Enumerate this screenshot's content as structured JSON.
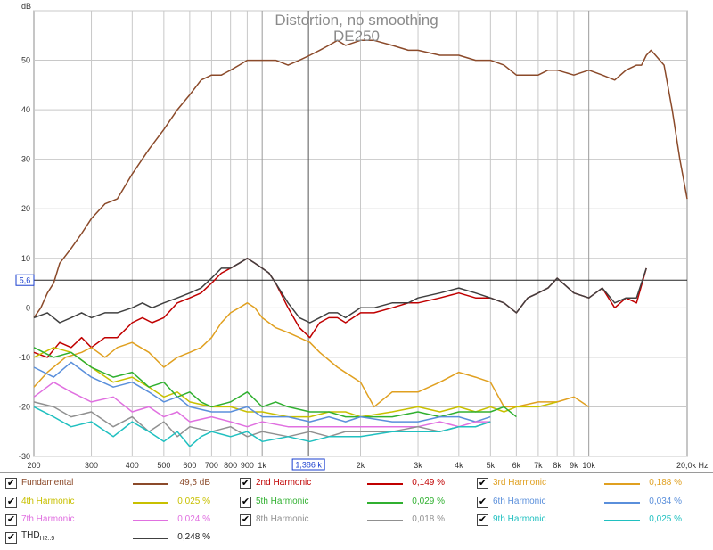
{
  "chart_data": {
    "type": "line",
    "title": "Distortion, no smoothing",
    "subtitle": "DE250",
    "ylabel": "dB",
    "xlabel": "Hz",
    "x_scale": "log",
    "xlim": [
      200,
      20000
    ],
    "ylim": [
      -30,
      60
    ],
    "grid": true,
    "y_ticks": [
      "50",
      "40",
      "30",
      "20",
      "10",
      "0",
      "-10",
      "-20",
      "-30"
    ],
    "x_ticks": [
      "200",
      "300",
      "400",
      "500",
      "600",
      "700",
      "800",
      "900",
      "1k",
      "2k",
      "3k",
      "4k",
      "5k",
      "6k",
      "7k",
      "8k",
      "9k",
      "10k",
      "20,0k Hz"
    ],
    "cursor": {
      "x_label": "1,386 k",
      "y_label": "5,6",
      "x_value": 1386,
      "y_value": 5.6
    },
    "series": [
      {
        "name": "Fundamental",
        "color": "#8b4a2a",
        "x": [
          200,
          210,
          220,
          230,
          240,
          260,
          280,
          300,
          330,
          360,
          400,
          450,
          500,
          550,
          600,
          650,
          700,
          750,
          800,
          850,
          900,
          950,
          1000,
          1100,
          1200,
          1300,
          1400,
          1500,
          1600,
          1700,
          1800,
          2000,
          2200,
          2500,
          2800,
          3000,
          3500,
          4000,
          4500,
          5000,
          5500,
          6000,
          6500,
          7000,
          7500,
          8000,
          9000,
          10000,
          11000,
          12000,
          13000,
          14000,
          14500,
          15000,
          15500,
          16000,
          17000,
          18000,
          19000,
          20000
        ],
        "y": [
          -2,
          0,
          3,
          5,
          9,
          12,
          15,
          18,
          21,
          22,
          27,
          32,
          36,
          40,
          43,
          46,
          47,
          47,
          48,
          49,
          50,
          50,
          50,
          50,
          49,
          50,
          51,
          52,
          53,
          54,
          53,
          54,
          54,
          53,
          52,
          52,
          51,
          51,
          50,
          50,
          49,
          47,
          47,
          47,
          48,
          48,
          47,
          48,
          47,
          46,
          48,
          49,
          49,
          51,
          52,
          51,
          49,
          40,
          30,
          22
        ]
      },
      {
        "name": "2nd Harmonic",
        "color": "#c00000",
        "x": [
          200,
          220,
          240,
          260,
          280,
          300,
          330,
          360,
          400,
          430,
          460,
          500,
          550,
          600,
          650,
          700,
          750,
          800,
          850,
          900,
          950,
          1000,
          1050,
          1100,
          1200,
          1300,
          1400,
          1500,
          1600,
          1700,
          1800,
          2000,
          2200,
          2500,
          2800,
          3000,
          3500,
          4000,
          4500,
          5000,
          5500,
          6000,
          6500,
          7000,
          7500,
          8000,
          9000,
          10000,
          11000,
          12000,
          13000,
          14000,
          15000
        ],
        "y": [
          -9,
          -10,
          -7,
          -8,
          -6,
          -8,
          -6,
          -6,
          -3,
          -2,
          -3,
          -2,
          1,
          2,
          3,
          5,
          7,
          8,
          9,
          10,
          9,
          8,
          7,
          5,
          0,
          -4,
          -6,
          -3,
          -2,
          -2,
          -3,
          -1,
          -1,
          0,
          1,
          1,
          2,
          3,
          2,
          2,
          1,
          -1,
          2,
          3,
          4,
          6,
          3,
          2,
          4,
          0,
          2,
          1,
          8
        ]
      },
      {
        "name": "3rd Harmonic",
        "color": "#e0a020",
        "x": [
          200,
          220,
          250,
          280,
          300,
          330,
          360,
          400,
          450,
          500,
          550,
          600,
          650,
          700,
          750,
          800,
          850,
          900,
          950,
          1000,
          1100,
          1200,
          1300,
          1400,
          1500,
          1700,
          2000,
          2200,
          2500,
          3000,
          3500,
          4000,
          4500,
          5000,
          5500,
          6000,
          7000,
          8000,
          9000,
          10000
        ],
        "y": [
          -16,
          -13,
          -10,
          -9,
          -8,
          -10,
          -8,
          -7,
          -9,
          -12,
          -10,
          -9,
          -8,
          -6,
          -3,
          -1,
          0,
          1,
          0,
          -2,
          -4,
          -5,
          -6,
          -7,
          -9,
          -12,
          -15,
          -20,
          -17,
          -17,
          -15,
          -13,
          -14,
          -15,
          -20,
          -20,
          -19,
          -19,
          -18,
          -20
        ]
      },
      {
        "name": "4th Harmonic",
        "color": "#c8c000",
        "x": [
          200,
          230,
          260,
          300,
          350,
          400,
          450,
          500,
          550,
          600,
          700,
          800,
          900,
          1000,
          1200,
          1400,
          1600,
          1800,
          2000,
          2500,
          3000,
          3500,
          4000,
          4500,
          5000,
          5500,
          6000,
          7000,
          8000
        ],
        "y": [
          -10,
          -8,
          -9,
          -12,
          -15,
          -14,
          -16,
          -18,
          -17,
          -19,
          -20,
          -20,
          -21,
          -21,
          -22,
          -22,
          -21,
          -21,
          -22,
          -21,
          -20,
          -21,
          -20,
          -21,
          -20,
          -21,
          -20,
          -20,
          -19
        ]
      },
      {
        "name": "5th Harmonic",
        "color": "#30b030",
        "x": [
          200,
          230,
          260,
          300,
          350,
          400,
          450,
          500,
          550,
          600,
          650,
          700,
          800,
          900,
          1000,
          1100,
          1200,
          1400,
          1600,
          1800,
          2000,
          2500,
          3000,
          3500,
          4000,
          4500,
          5000,
          5500,
          6000
        ],
        "y": [
          -8,
          -10,
          -9,
          -12,
          -14,
          -13,
          -16,
          -15,
          -18,
          -17,
          -19,
          -20,
          -19,
          -17,
          -20,
          -19,
          -20,
          -21,
          -21,
          -22,
          -22,
          -22,
          -21,
          -22,
          -21,
          -21,
          -21,
          -20,
          -22
        ]
      },
      {
        "name": "6th Harmonic",
        "color": "#5a8fdb",
        "x": [
          200,
          230,
          260,
          300,
          350,
          400,
          450,
          500,
          550,
          600,
          700,
          800,
          900,
          1000,
          1200,
          1400,
          1600,
          1800,
          2000,
          2500,
          3000,
          3500,
          4000,
          4500,
          5000
        ],
        "y": [
          -12,
          -14,
          -11,
          -14,
          -16,
          -15,
          -17,
          -19,
          -18,
          -20,
          -21,
          -21,
          -20,
          -22,
          -22,
          -23,
          -22,
          -23,
          -22,
          -23,
          -23,
          -22,
          -22,
          -23,
          -22
        ]
      },
      {
        "name": "7th Harmonic",
        "color": "#e070e0",
        "x": [
          200,
          230,
          260,
          300,
          350,
          400,
          450,
          500,
          550,
          600,
          700,
          800,
          900,
          1000,
          1200,
          1400,
          1600,
          1800,
          2000,
          2500,
          3000,
          3500,
          4000,
          4500,
          5000
        ],
        "y": [
          -18,
          -15,
          -17,
          -19,
          -18,
          -21,
          -20,
          -22,
          -21,
          -23,
          -22,
          -23,
          -24,
          -23,
          -24,
          -24,
          -24,
          -24,
          -24,
          -24,
          -24,
          -23,
          -24,
          -23,
          -23
        ]
      },
      {
        "name": "8th Harmonic",
        "color": "#909090",
        "x": [
          200,
          230,
          260,
          300,
          350,
          400,
          450,
          500,
          550,
          600,
          700,
          800,
          900,
          1000,
          1200,
          1400,
          1600,
          1800,
          2000,
          2500,
          3000,
          3500,
          4000,
          4500,
          5000
        ],
        "y": [
          -19,
          -20,
          -22,
          -21,
          -24,
          -22,
          -25,
          -23,
          -26,
          -24,
          -25,
          -24,
          -26,
          -25,
          -26,
          -25,
          -26,
          -25,
          -25,
          -25,
          -24,
          -25,
          -24,
          -24,
          -23
        ]
      },
      {
        "name": "9th Harmonic",
        "color": "#20c0c0",
        "x": [
          200,
          230,
          260,
          300,
          350,
          400,
          450,
          500,
          550,
          600,
          650,
          700,
          800,
          900,
          1000,
          1200,
          1400,
          1600,
          1800,
          2000,
          2500,
          3000,
          3500,
          4000,
          4500,
          5000
        ],
        "y": [
          -20,
          -22,
          -24,
          -23,
          -26,
          -23,
          -25,
          -27,
          -25,
          -28,
          -26,
          -25,
          -26,
          -25,
          -27,
          -26,
          -27,
          -26,
          -26,
          -26,
          -25,
          -25,
          -25,
          -24,
          -24,
          -23
        ]
      },
      {
        "name": "THD H2..9",
        "color": "#404040",
        "x": [
          200,
          220,
          240,
          260,
          280,
          300,
          330,
          360,
          400,
          430,
          460,
          500,
          550,
          600,
          650,
          700,
          750,
          800,
          850,
          900,
          950,
          1000,
          1050,
          1100,
          1200,
          1300,
          1400,
          1500,
          1600,
          1700,
          1800,
          2000,
          2200,
          2500,
          2800,
          3000,
          3500,
          4000,
          4500,
          5000,
          5500,
          6000,
          6500,
          7000,
          7500,
          8000,
          9000,
          10000,
          11000,
          12000,
          13000,
          14000,
          15000
        ],
        "y": [
          -2,
          -1,
          -3,
          -2,
          -1,
          -2,
          -1,
          -1,
          0,
          1,
          0,
          1,
          2,
          3,
          4,
          6,
          8,
          8,
          9,
          10,
          9,
          8,
          7,
          5,
          1,
          -2,
          -3,
          -2,
          -1,
          -1,
          -2,
          0,
          0,
          1,
          1,
          2,
          3,
          4,
          3,
          2,
          1,
          -1,
          2,
          3,
          4,
          6,
          3,
          2,
          4,
          1,
          2,
          2,
          8
        ]
      }
    ]
  },
  "legend": {
    "rows": [
      [
        {
          "label": "Fundamental",
          "value": "49,5 dB",
          "color": "#8b4a2a"
        },
        {
          "label": "2nd Harmonic",
          "value": "0,149 %",
          "color": "#c00000"
        },
        {
          "label": "3rd Harmonic",
          "value": "0,188 %",
          "color": "#e0a020"
        }
      ],
      [
        {
          "label": "4th Harmonic",
          "value": "0,025 %",
          "color": "#c8c000"
        },
        {
          "label": "5th Harmonic",
          "value": "0,029 %",
          "color": "#30b030"
        },
        {
          "label": "6th Harmonic",
          "value": "0,034 %",
          "color": "#5a8fdb"
        }
      ],
      [
        {
          "label": "7th Harmonic",
          "value": "0,024 %",
          "color": "#e070e0"
        },
        {
          "label": "8th Harmonic",
          "value": "0,018 %",
          "color": "#909090"
        },
        {
          "label": "9th Harmonic",
          "value": "0,025 %",
          "color": "#20c0c0"
        }
      ]
    ],
    "thd": {
      "label_main": "THD",
      "label_sub": "H2..9",
      "value": "0,248 %",
      "color": "#404040"
    },
    "check_glyph": "✔"
  }
}
